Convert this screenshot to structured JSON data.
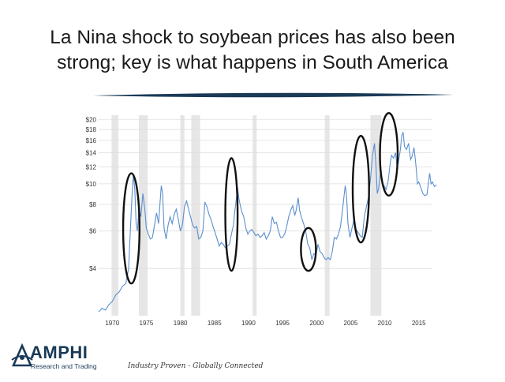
{
  "slide": {
    "title_line1": "La Nina shock to soybean prices has also been",
    "title_line2": "strong; key is what happens in South America"
  },
  "brand": {
    "name": "AMPHI",
    "subtitle": "Research and Trading",
    "tagline": "Industry Proven - Globally Connected",
    "color": "#1a3a57"
  },
  "chart_data": {
    "type": "line",
    "y_scale": "log",
    "ylim": [
      2.4,
      21
    ],
    "xlim": [
      1968,
      2017
    ],
    "y_ticks": [
      {
        "value": 20,
        "label": "$20"
      },
      {
        "value": 18,
        "label": "$18"
      },
      {
        "value": 16,
        "label": "$16"
      },
      {
        "value": 14,
        "label": "$14"
      },
      {
        "value": 12,
        "label": "$12"
      },
      {
        "value": 10,
        "label": "$10"
      },
      {
        "value": 8,
        "label": "$8"
      },
      {
        "value": 6,
        "label": "$6"
      },
      {
        "value": 4,
        "label": "$4"
      }
    ],
    "x_ticks": [
      {
        "value": 1970,
        "label": "1970"
      },
      {
        "value": 1975,
        "label": "1975"
      },
      {
        "value": 1980,
        "label": "1980"
      },
      {
        "value": 1985,
        "label": "1985"
      },
      {
        "value": 1990,
        "label": "1990"
      },
      {
        "value": 1995,
        "label": "1995"
      },
      {
        "value": 2000,
        "label": "2000"
      },
      {
        "value": 2005,
        "label": "2005"
      },
      {
        "value": 2010,
        "label": "2010"
      },
      {
        "value": 2015,
        "label": "2015"
      }
    ],
    "grid": true,
    "line_color": "#5b8fcf",
    "shaded_periods": [
      [
        1969.9,
        1970.9
      ],
      [
        1973.9,
        1975.2
      ],
      [
        1980.0,
        1980.6
      ],
      [
        1981.6,
        1982.9
      ],
      [
        1990.6,
        1991.2
      ],
      [
        2001.2,
        2001.9
      ],
      [
        2007.9,
        2009.5
      ]
    ],
    "highlight_ellipses": [
      {
        "center": [
          1972.8,
          6.0
        ],
        "rx_years": 1.2,
        "ry_low": 3.4,
        "ry_high": 11.2
      },
      {
        "center": [
          1987.5,
          6.6
        ],
        "rx_years": 0.9,
        "ry_low": 3.9,
        "ry_high": 13.2
      },
      {
        "center": [
          1998.8,
          4.8
        ],
        "rx_years": 1.1,
        "ry_low": 3.9,
        "ry_high": 6.2
      },
      {
        "center": [
          2006.5,
          8.6
        ],
        "rx_years": 1.2,
        "ry_low": 5.3,
        "ry_high": 16.8
      },
      {
        "center": [
          2010.6,
          14.2
        ],
        "rx_years": 1.3,
        "ry_low": 8.8,
        "ry_high": 21.5
      }
    ],
    "series": [
      {
        "values": [
          [
            1968.0,
            2.5
          ],
          [
            1968.5,
            2.6
          ],
          [
            1969.0,
            2.55
          ],
          [
            1969.5,
            2.7
          ],
          [
            1970.0,
            2.8
          ],
          [
            1970.5,
            3.0
          ],
          [
            1971.0,
            3.1
          ],
          [
            1971.5,
            3.3
          ],
          [
            1972.0,
            3.4
          ],
          [
            1972.4,
            4.0
          ],
          [
            1972.7,
            6.5
          ],
          [
            1972.9,
            8.8
          ],
          [
            1973.1,
            11.0
          ],
          [
            1973.3,
            9.5
          ],
          [
            1973.5,
            6.5
          ],
          [
            1973.7,
            6.0
          ],
          [
            1973.9,
            7.5
          ],
          [
            1974.2,
            7.0
          ],
          [
            1974.5,
            9.0
          ],
          [
            1974.8,
            7.5
          ],
          [
            1975.0,
            6.2
          ],
          [
            1975.3,
            5.8
          ],
          [
            1975.6,
            5.5
          ],
          [
            1975.9,
            5.6
          ],
          [
            1976.2,
            6.4
          ],
          [
            1976.5,
            7.3
          ],
          [
            1976.8,
            6.5
          ],
          [
            1977.0,
            8.0
          ],
          [
            1977.2,
            9.8
          ],
          [
            1977.4,
            9.0
          ],
          [
            1977.6,
            6.2
          ],
          [
            1977.9,
            5.5
          ],
          [
            1978.2,
            6.4
          ],
          [
            1978.5,
            7.0
          ],
          [
            1978.8,
            6.5
          ],
          [
            1979.1,
            7.2
          ],
          [
            1979.4,
            7.6
          ],
          [
            1979.7,
            6.8
          ],
          [
            1980.0,
            6.0
          ],
          [
            1980.3,
            6.4
          ],
          [
            1980.6,
            7.8
          ],
          [
            1980.9,
            8.3
          ],
          [
            1981.2,
            7.6
          ],
          [
            1981.5,
            7.0
          ],
          [
            1981.8,
            6.4
          ],
          [
            1982.1,
            6.2
          ],
          [
            1982.4,
            6.3
          ],
          [
            1982.7,
            5.5
          ],
          [
            1983.0,
            5.6
          ],
          [
            1983.3,
            6.0
          ],
          [
            1983.6,
            8.2
          ],
          [
            1983.9,
            7.8
          ],
          [
            1984.2,
            7.2
          ],
          [
            1984.5,
            6.8
          ],
          [
            1984.8,
            6.3
          ],
          [
            1985.1,
            5.9
          ],
          [
            1985.4,
            5.5
          ],
          [
            1985.7,
            5.1
          ],
          [
            1986.0,
            5.3
          ],
          [
            1986.3,
            5.2
          ],
          [
            1986.6,
            5.0
          ],
          [
            1986.9,
            5.1
          ],
          [
            1987.2,
            5.2
          ],
          [
            1987.5,
            5.8
          ],
          [
            1987.8,
            6.4
          ],
          [
            1988.0,
            7.5
          ],
          [
            1988.2,
            8.4
          ],
          [
            1988.4,
            9.6
          ],
          [
            1988.6,
            8.5
          ],
          [
            1988.8,
            7.9
          ],
          [
            1989.0,
            7.4
          ],
          [
            1989.3,
            7.0
          ],
          [
            1989.6,
            6.2
          ],
          [
            1989.9,
            5.8
          ],
          [
            1990.2,
            6.0
          ],
          [
            1990.5,
            6.1
          ],
          [
            1990.8,
            5.9
          ],
          [
            1991.1,
            5.7
          ],
          [
            1991.4,
            5.8
          ],
          [
            1991.7,
            5.6
          ],
          [
            1992.0,
            5.7
          ],
          [
            1992.3,
            5.9
          ],
          [
            1992.6,
            5.5
          ],
          [
            1992.9,
            5.7
          ],
          [
            1993.2,
            6.0
          ],
          [
            1993.5,
            7.0
          ],
          [
            1993.8,
            6.5
          ],
          [
            1994.1,
            6.6
          ],
          [
            1994.4,
            6.0
          ],
          [
            1994.7,
            5.6
          ],
          [
            1995.0,
            5.6
          ],
          [
            1995.3,
            5.8
          ],
          [
            1995.6,
            6.3
          ],
          [
            1995.9,
            7.0
          ],
          [
            1996.2,
            7.5
          ],
          [
            1996.5,
            7.9
          ],
          [
            1996.8,
            7.1
          ],
          [
            1997.0,
            7.5
          ],
          [
            1997.3,
            8.6
          ],
          [
            1997.5,
            7.5
          ],
          [
            1997.8,
            6.9
          ],
          [
            1998.1,
            6.5
          ],
          [
            1998.4,
            6.0
          ],
          [
            1998.7,
            5.2
          ],
          [
            1999.0,
            5.0
          ],
          [
            1999.3,
            4.4
          ],
          [
            1999.6,
            4.7
          ],
          [
            1999.9,
            4.6
          ],
          [
            2000.2,
            5.2
          ],
          [
            2000.5,
            4.8
          ],
          [
            2000.8,
            4.7
          ],
          [
            2001.1,
            4.5
          ],
          [
            2001.4,
            4.4
          ],
          [
            2001.7,
            4.5
          ],
          [
            2002.0,
            4.4
          ],
          [
            2002.3,
            4.8
          ],
          [
            2002.6,
            5.6
          ],
          [
            2002.9,
            5.5
          ],
          [
            2003.2,
            5.8
          ],
          [
            2003.5,
            6.3
          ],
          [
            2003.8,
            7.5
          ],
          [
            2004.0,
            8.6
          ],
          [
            2004.2,
            9.8
          ],
          [
            2004.4,
            8.8
          ],
          [
            2004.6,
            6.5
          ],
          [
            2004.9,
            5.6
          ],
          [
            2005.2,
            6.2
          ],
          [
            2005.5,
            6.8
          ],
          [
            2005.8,
            6.1
          ],
          [
            2006.1,
            5.9
          ],
          [
            2006.4,
            5.7
          ],
          [
            2006.7,
            5.6
          ],
          [
            2007.0,
            7.0
          ],
          [
            2007.3,
            7.8
          ],
          [
            2007.6,
            8.6
          ],
          [
            2007.9,
            10.4
          ],
          [
            2008.2,
            13.5
          ],
          [
            2008.5,
            15.5
          ],
          [
            2008.7,
            12.5
          ],
          [
            2008.9,
            9.0
          ],
          [
            2009.1,
            9.5
          ],
          [
            2009.4,
            11.5
          ],
          [
            2009.7,
            10.0
          ],
          [
            2009.9,
            9.8
          ],
          [
            2010.2,
            9.4
          ],
          [
            2010.5,
            10.3
          ],
          [
            2010.8,
            12.5
          ],
          [
            2011.0,
            13.6
          ],
          [
            2011.3,
            13.2
          ],
          [
            2011.6,
            14.0
          ],
          [
            2011.8,
            12.0
          ],
          [
            2012.0,
            12.5
          ],
          [
            2012.3,
            14.5
          ],
          [
            2012.5,
            16.8
          ],
          [
            2012.7,
            17.5
          ],
          [
            2012.9,
            15.0
          ],
          [
            2013.2,
            14.5
          ],
          [
            2013.5,
            15.5
          ],
          [
            2013.8,
            13.0
          ],
          [
            2014.0,
            13.4
          ],
          [
            2014.3,
            14.8
          ],
          [
            2014.6,
            12.0
          ],
          [
            2014.8,
            10.0
          ],
          [
            2015.0,
            10.2
          ],
          [
            2015.3,
            9.6
          ],
          [
            2015.6,
            9.0
          ],
          [
            2015.9,
            8.8
          ],
          [
            2016.2,
            8.9
          ],
          [
            2016.4,
            10.0
          ],
          [
            2016.6,
            11.2
          ],
          [
            2016.8,
            10.0
          ],
          [
            2017.0,
            10.2
          ],
          [
            2017.3,
            9.7
          ],
          [
            2017.6,
            9.9
          ]
        ]
      }
    ]
  }
}
